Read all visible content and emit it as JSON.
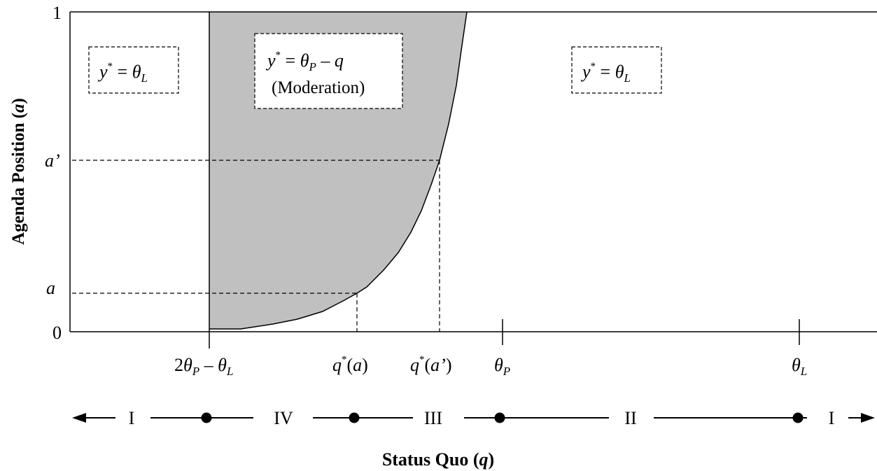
{
  "axes": {
    "y_label_pre": "Agenda Position (",
    "y_label_var": "a",
    "y_label_post": ")",
    "x_label_pre": "Status Quo (",
    "x_label_var": "q",
    "x_label_post": ")"
  },
  "y_ticks": {
    "one": "1",
    "zero": "0",
    "a_prime": "a’",
    "a": "a"
  },
  "x_ticks": {
    "left_bound": {
      "two": "2",
      "theta": "θ",
      "sub_p": "P",
      "minus": " – ",
      "theta2": "θ",
      "sub_l": "L"
    },
    "q_star_a": {
      "q": "q",
      "star": "*",
      "open": "(",
      "arg": "a",
      "close": ")"
    },
    "q_star_a_prime": {
      "q": "q",
      "star": "*",
      "open": "(",
      "arg": "a’",
      "close": ")"
    },
    "theta_p": {
      "theta": "θ",
      "sub": "P"
    },
    "theta_l": {
      "theta": "θ",
      "sub": "L"
    }
  },
  "regions": {
    "left_box": {
      "y": "y",
      "star": "*",
      "eq": " = ",
      "theta": "θ",
      "sub": "L"
    },
    "mid_box": {
      "y": "y",
      "star": "*",
      "eq": " = ",
      "theta": "θ",
      "sub": "P",
      "rest": " – ",
      "q": "q",
      "note": "(Moderation)"
    },
    "right_box": {
      "y": "y",
      "star": "*",
      "eq": " = ",
      "theta": "θ",
      "sub": "L"
    }
  },
  "intervals": {
    "labels": [
      "I",
      "IV",
      "III",
      "II",
      "I"
    ]
  },
  "colors": {
    "shade": "#c0c0c0",
    "line": "#000000"
  }
}
